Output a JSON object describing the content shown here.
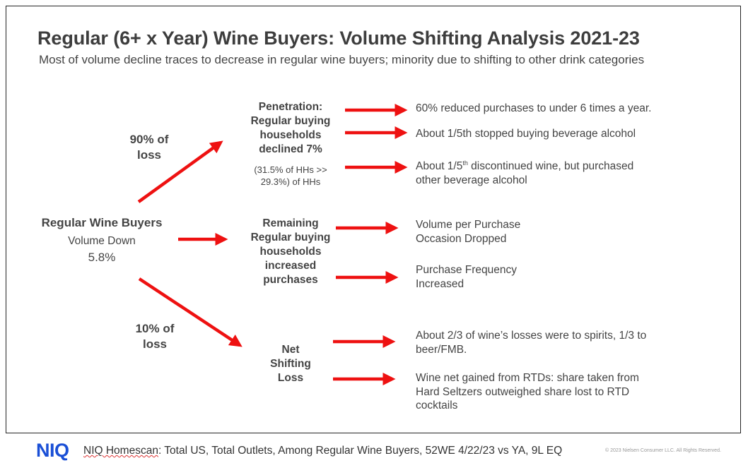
{
  "title": "Regular (6+ x Year) Wine Buyers: Volume Shifting Analysis 2021-23",
  "subtitle": "Most of volume decline traces to decrease in regular wine buyers; minority due to shifting to other drink categories",
  "root": {
    "label": "Regular Wine Buyers",
    "line1": "Volume Down",
    "line2": "5.8%"
  },
  "branch_labels": {
    "upper": [
      "90% of",
      "loss"
    ],
    "lower": [
      "10% of",
      "loss"
    ]
  },
  "nodes": {
    "penetration": {
      "lines": [
        "Penetration:",
        "Regular buying",
        "households",
        "declined 7%"
      ],
      "note": [
        "(31.5% of HHs  >>",
        "29.3%) of HHs"
      ]
    },
    "remaining": {
      "lines": [
        "Remaining",
        "Regular buying",
        "households",
        "increased",
        "purchases"
      ]
    },
    "shifting": {
      "lines": [
        "Net",
        "Shifting",
        "Loss"
      ]
    }
  },
  "outcomes": {
    "p1": "60% reduced purchases to under 6 times a year.",
    "p2": "About 1/5th stopped buying beverage alcohol",
    "p3_pre": "About 1/5",
    "p3_sup": "th",
    "p3_post": " discontinued wine, but purchased",
    "p3_line2": "other beverage alcohol",
    "r1": [
      "Volume per Purchase",
      "Occasion Dropped"
    ],
    "r2": [
      "Purchase Frequency",
      "Increased"
    ],
    "s1": [
      "About 2/3 of wine’s losses were to spirits, 1/3 to",
      "beer/FMB."
    ],
    "s2": [
      "Wine net gained from RTDs: share taken from",
      "Hard Seltzers outweighed share lost to RTD",
      "cocktails"
    ]
  },
  "footer": {
    "logo": "NIQ",
    "source_brand": "NIQ Homescan",
    "source_rest": ": Total US, Total Outlets, Among Regular Wine Buyers, 52WE 4/22/23 vs YA, 9L EQ",
    "copyright": "© 2023 Nielsen Consumer LLC. All Rights Reserved."
  },
  "colors": {
    "arrow": "#ee1111",
    "logo": "#1a4fd6",
    "text": "#444444"
  }
}
